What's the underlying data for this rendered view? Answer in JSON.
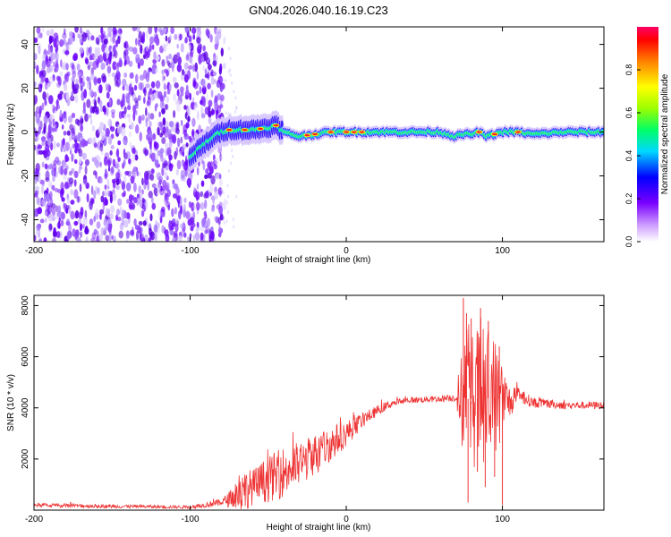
{
  "title": "GN04.2026.040.16.19.C23",
  "chart_data": [
    {
      "type": "heatmap",
      "name": "spectrogram",
      "xlabel": "Height of straight line (km)",
      "ylabel": "Frequency (Hz)",
      "xlim": [
        -200,
        165
      ],
      "ylim": [
        -50,
        48
      ],
      "xticks": [
        -200,
        -100,
        0,
        100
      ],
      "xtick_labels": [
        "-200",
        "-100",
        "0",
        "100"
      ],
      "yticks": [
        -40,
        -20,
        0,
        20,
        40
      ],
      "ytick_labels": [
        "-40",
        "-20",
        "0",
        "20",
        "40"
      ],
      "noise_region_km": [
        -200,
        -80
      ],
      "carrier_track": {
        "x": [
          -100,
          -95,
          -90,
          -85,
          -80,
          -75,
          -70,
          -60,
          -50,
          -45,
          -40,
          -30,
          -20,
          -10,
          0,
          10,
          20,
          40,
          60,
          70,
          75,
          80,
          85,
          90,
          100,
          110,
          120,
          140,
          165
        ],
        "freq": [
          -12,
          -8,
          -5,
          -2,
          0,
          1,
          1,
          1,
          2,
          3,
          0,
          -2,
          -1,
          0,
          0,
          0,
          0,
          0,
          0,
          -2,
          -1,
          -1,
          0,
          -2,
          0,
          0,
          -1,
          0,
          0
        ],
        "peaks_km": [
          -75,
          -65,
          -55,
          -45,
          -25,
          -20,
          -10,
          0,
          5,
          10,
          85,
          95,
          110
        ]
      },
      "colorbar": {
        "label": "Normalized spectral amplitude",
        "ticks": [
          0.0,
          0.2,
          0.4,
          0.6,
          0.8
        ],
        "tick_labels": [
          "0.0",
          "0.2",
          "0.4",
          "0.6",
          "0.8"
        ],
        "colors": [
          "#ffffff",
          "#cc99ff",
          "#7a00ff",
          "#0000ff",
          "#00d8ff",
          "#00ff66",
          "#9cff00",
          "#ffff00",
          "#ff8000",
          "#ff0000",
          "#ff0066"
        ]
      }
    },
    {
      "type": "line",
      "name": "snr",
      "xlabel": "Height of straight line (km)",
      "ylabel": "SNR (10 * v/v)",
      "xlim": [
        -200,
        165
      ],
      "ylim": [
        0,
        8400
      ],
      "xticks": [
        -200,
        -100,
        0,
        100
      ],
      "xtick_labels": [
        "-200",
        "-100",
        "0",
        "100"
      ],
      "yticks": [
        2000,
        4000,
        6000,
        8000
      ],
      "ytick_labels": [
        "2000",
        "4000",
        "6000",
        "8000"
      ],
      "color": "#ee3333",
      "envelope": {
        "x": [
          -200,
          -150,
          -100,
          -80,
          -72,
          -70,
          -60,
          -50,
          -40,
          -30,
          -20,
          -10,
          0,
          10,
          20,
          30,
          40,
          60,
          70,
          74,
          85,
          95,
          100,
          105,
          110,
          120,
          140,
          165
        ],
        "base": [
          200,
          150,
          120,
          300,
          500,
          700,
          900,
          1200,
          1500,
          1800,
          2200,
          2600,
          3000,
          3500,
          3900,
          4200,
          4300,
          4350,
          4400,
          4350,
          4350,
          4400,
          4300,
          4200,
          4500,
          4200,
          4100,
          4100
        ],
        "spread": [
          80,
          70,
          60,
          150,
          400,
          900,
          700,
          900,
          1000,
          900,
          800,
          700,
          500,
          300,
          200,
          150,
          120,
          120,
          150,
          2000,
          3000,
          2500,
          1500,
          600,
          300,
          200,
          150,
          150
        ]
      },
      "spikes": [
        {
          "x": 75,
          "y": 8300
        },
        {
          "x": 77,
          "y": 7700
        },
        {
          "x": 78,
          "y": 300
        },
        {
          "x": 80,
          "y": 7500
        },
        {
          "x": 84,
          "y": 1500
        },
        {
          "x": 86,
          "y": 7900
        },
        {
          "x": 89,
          "y": 900
        },
        {
          "x": 91,
          "y": 7400
        },
        {
          "x": 95,
          "y": 1300
        },
        {
          "x": 98,
          "y": 6400
        },
        {
          "x": 100,
          "y": 200
        }
      ]
    }
  ]
}
